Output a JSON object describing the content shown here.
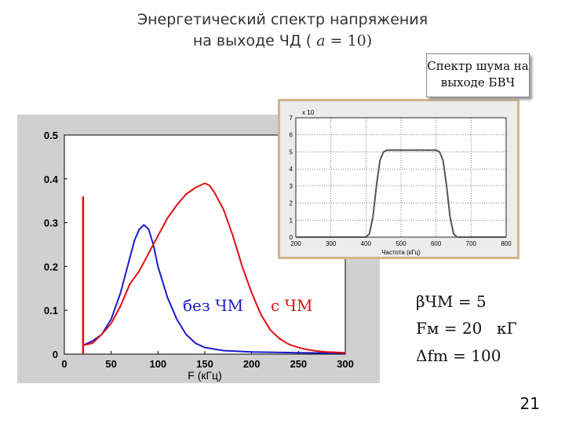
{
  "slide": {
    "title_line1": "Энергетический спектр напряжения",
    "title_line2_prefix": "на выходе ЧД (",
    "title_line2_alpha": "a",
    "title_line2_suffix": "= 10)",
    "page_number": "21"
  },
  "callout": {
    "line1": "Спектр шума на",
    "line2": "выходе БВЧ"
  },
  "labels": {
    "without_fm": "без ЧМ",
    "with_fm": "с ЧМ"
  },
  "formulas": {
    "beta": "βЧМ = 5",
    "fm": "Fм = 20",
    "fm_unit": "кГ",
    "deviation": "Δfm = 100"
  },
  "colors": {
    "without_fm": "#1a1acc",
    "with_fm": "#dd1111",
    "inset_curve": "#555555",
    "plot_bg": "#ffffff",
    "figure_bg": "#d0d0d0"
  },
  "chart_data": [
    {
      "type": "line",
      "xlabel": "F (кГц)",
      "ylabel": "",
      "xlim": [
        0,
        300
      ],
      "ylim": [
        0,
        0.5
      ],
      "xticks": [
        "0",
        "50",
        "100",
        "150",
        "200",
        "250",
        "300"
      ],
      "yticks": [
        "0",
        "0.1",
        "0.2",
        "0.3",
        "0.4",
        "0.5"
      ],
      "grid": false,
      "series": [
        {
          "name": "без ЧМ",
          "x": [
            20,
            30,
            40,
            50,
            60,
            70,
            75,
            80,
            85,
            90,
            95,
            100,
            110,
            120,
            130,
            140,
            150,
            170,
            200,
            250,
            300
          ],
          "y": [
            0.02,
            0.03,
            0.045,
            0.08,
            0.14,
            0.22,
            0.26,
            0.285,
            0.295,
            0.285,
            0.25,
            0.2,
            0.13,
            0.08,
            0.045,
            0.025,
            0.015,
            0.008,
            0.005,
            0.003,
            0.002
          ]
        },
        {
          "name": "с ЧМ",
          "x": [
            20,
            30,
            40,
            50,
            60,
            70,
            80,
            90,
            100,
            110,
            120,
            130,
            140,
            150,
            155,
            160,
            170,
            180,
            190,
            200,
            210,
            220,
            230,
            240,
            250,
            260,
            270,
            280,
            290,
            300
          ],
          "y": [
            0.02,
            0.025,
            0.045,
            0.07,
            0.11,
            0.16,
            0.19,
            0.23,
            0.27,
            0.31,
            0.34,
            0.365,
            0.38,
            0.39,
            0.385,
            0.37,
            0.33,
            0.27,
            0.2,
            0.14,
            0.09,
            0.055,
            0.035,
            0.022,
            0.015,
            0.01,
            0.007,
            0.005,
            0.004,
            0.003
          ]
        },
        {
          "name": "",
          "spike_x": 20,
          "spike_y": 0.36
        }
      ]
    },
    {
      "type": "line",
      "title": "Спектр шума на выходе БВЧ",
      "xlabel": "Частота (кГц)",
      "ylabel": "",
      "exponent_label": "x 10",
      "xlim": [
        200,
        800
      ],
      "ylim": [
        0,
        7
      ],
      "xticks": [
        "200",
        "300",
        "400",
        "500",
        "600",
        "700",
        "800"
      ],
      "yticks": [
        "0",
        "1",
        "2",
        "3",
        "4",
        "5",
        "6",
        "7"
      ],
      "grid": true,
      "series": [
        {
          "name": "",
          "x": [
            200,
            400,
            410,
            420,
            430,
            440,
            450,
            460,
            600,
            610,
            620,
            630,
            640,
            650,
            660,
            800
          ],
          "y": [
            0,
            0,
            0.2,
            1.2,
            3.0,
            4.5,
            5.0,
            5.1,
            5.1,
            5.0,
            4.5,
            3.0,
            1.2,
            0.2,
            0,
            0
          ]
        }
      ]
    }
  ]
}
